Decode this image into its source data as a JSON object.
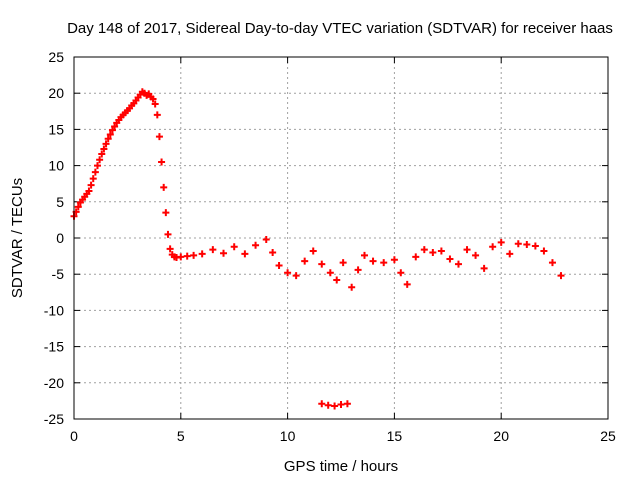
{
  "chart_data": {
    "type": "scatter",
    "title": "Day 148 of 2017, Sidereal Day-to-day VTEC variation (SDTVAR) for receiver haas",
    "xlabel": "GPS time / hours",
    "ylabel": "SDTVAR / TECUs",
    "xlim": [
      0,
      25
    ],
    "ylim": [
      -25,
      25
    ],
    "xticks": [
      0,
      5,
      10,
      15,
      20,
      25
    ],
    "yticks": [
      -25,
      -20,
      -15,
      -10,
      -5,
      0,
      5,
      10,
      15,
      20,
      25
    ],
    "grid": true,
    "marker": "plus",
    "color": "#ff0000",
    "series": [
      {
        "name": "SDTVAR",
        "points": [
          [
            0.0,
            3.0
          ],
          [
            0.1,
            3.6
          ],
          [
            0.2,
            4.3
          ],
          [
            0.3,
            4.9
          ],
          [
            0.4,
            5.3
          ],
          [
            0.5,
            5.7
          ],
          [
            0.6,
            6.1
          ],
          [
            0.7,
            6.5
          ],
          [
            0.8,
            7.3
          ],
          [
            0.9,
            8.2
          ],
          [
            1.0,
            9.1
          ],
          [
            1.1,
            10.0
          ],
          [
            1.2,
            10.8
          ],
          [
            1.3,
            11.6
          ],
          [
            1.4,
            12.3
          ],
          [
            1.5,
            13.0
          ],
          [
            1.6,
            13.7
          ],
          [
            1.7,
            14.3
          ],
          [
            1.8,
            14.9
          ],
          [
            1.9,
            15.4
          ],
          [
            2.0,
            15.9
          ],
          [
            2.1,
            16.3
          ],
          [
            2.2,
            16.7
          ],
          [
            2.3,
            17.0
          ],
          [
            2.4,
            17.3
          ],
          [
            2.5,
            17.6
          ],
          [
            2.6,
            17.9
          ],
          [
            2.7,
            18.3
          ],
          [
            2.8,
            18.6
          ],
          [
            2.9,
            19.0
          ],
          [
            3.0,
            19.4
          ],
          [
            3.1,
            19.8
          ],
          [
            3.2,
            20.2
          ],
          [
            3.3,
            20.0
          ],
          [
            3.4,
            19.7
          ],
          [
            3.5,
            19.9
          ],
          [
            3.6,
            19.5
          ],
          [
            3.7,
            19.2
          ],
          [
            3.8,
            18.5
          ],
          [
            3.9,
            17.0
          ],
          [
            4.0,
            14.0
          ],
          [
            4.1,
            10.5
          ],
          [
            4.2,
            7.0
          ],
          [
            4.3,
            3.5
          ],
          [
            4.4,
            0.5
          ],
          [
            4.5,
            -1.5
          ],
          [
            4.6,
            -2.3
          ],
          [
            4.7,
            -2.6
          ],
          [
            4.8,
            -2.7
          ],
          [
            5.0,
            -2.6
          ],
          [
            5.3,
            -2.5
          ],
          [
            5.6,
            -2.4
          ],
          [
            6.0,
            -2.2
          ],
          [
            6.5,
            -1.6
          ],
          [
            7.0,
            -2.1
          ],
          [
            7.5,
            -1.2
          ],
          [
            8.0,
            -2.2
          ],
          [
            8.5,
            -1.0
          ],
          [
            9.0,
            -0.2
          ],
          [
            9.3,
            -2.0
          ],
          [
            9.6,
            -3.8
          ],
          [
            10.0,
            -4.8
          ],
          [
            10.4,
            -5.2
          ],
          [
            10.8,
            -3.2
          ],
          [
            11.2,
            -1.8
          ],
          [
            11.6,
            -3.6
          ],
          [
            12.0,
            -4.8
          ],
          [
            12.3,
            -5.8
          ],
          [
            12.6,
            -3.4
          ],
          [
            13.0,
            -6.8
          ],
          [
            13.3,
            -4.4
          ],
          [
            13.6,
            -2.4
          ],
          [
            14.0,
            -3.2
          ],
          [
            14.5,
            -3.4
          ],
          [
            15.0,
            -3.0
          ],
          [
            15.3,
            -4.8
          ],
          [
            15.6,
            -6.4
          ],
          [
            16.0,
            -2.6
          ],
          [
            16.4,
            -1.6
          ],
          [
            16.8,
            -2.0
          ],
          [
            17.2,
            -1.8
          ],
          [
            17.6,
            -2.9
          ],
          [
            18.0,
            -3.6
          ],
          [
            18.4,
            -1.6
          ],
          [
            18.8,
            -2.4
          ],
          [
            19.2,
            -4.2
          ],
          [
            19.6,
            -1.2
          ],
          [
            20.0,
            -0.6
          ],
          [
            20.4,
            -2.2
          ],
          [
            20.8,
            -0.8
          ],
          [
            21.2,
            -0.9
          ],
          [
            21.6,
            -1.1
          ],
          [
            22.0,
            -1.8
          ],
          [
            22.4,
            -3.4
          ],
          [
            22.8,
            -5.2
          ],
          [
            11.6,
            -22.9
          ],
          [
            11.9,
            -23.1
          ],
          [
            12.2,
            -23.2
          ],
          [
            12.5,
            -23.0
          ],
          [
            12.8,
            -22.9
          ]
        ]
      }
    ]
  }
}
